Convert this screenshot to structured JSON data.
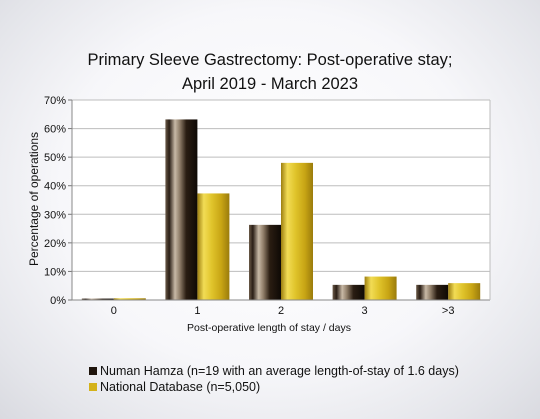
{
  "chart_data": {
    "type": "bar",
    "title_line1": "Primary Sleeve Gastrectomy: Post-operative stay;",
    "title_line2": "April 2019 - March 2023",
    "xlabel": "Post-operative length of stay / days",
    "ylabel": "Percentage of operations",
    "categories": [
      "0",
      "1",
      "2",
      "3",
      ">3"
    ],
    "ylim": [
      0,
      70
    ],
    "yticks": [
      "0%",
      "10%",
      "20%",
      "30%",
      "40%",
      "50%",
      "60%",
      "70%"
    ],
    "grid": true,
    "legend_position": "bottom-left",
    "series": [
      {
        "name": "Numan Hamza (n=19 with an average length-of-stay of 1.6 days)",
        "values": [
          0.5,
          63.2,
          26.3,
          5.3,
          5.3
        ],
        "color": "#2a1d14"
      },
      {
        "name": "National Database (n=5,050)",
        "values": [
          0.6,
          37.3,
          48.0,
          8.2,
          5.9
        ],
        "color": "#d4b21a"
      }
    ]
  }
}
